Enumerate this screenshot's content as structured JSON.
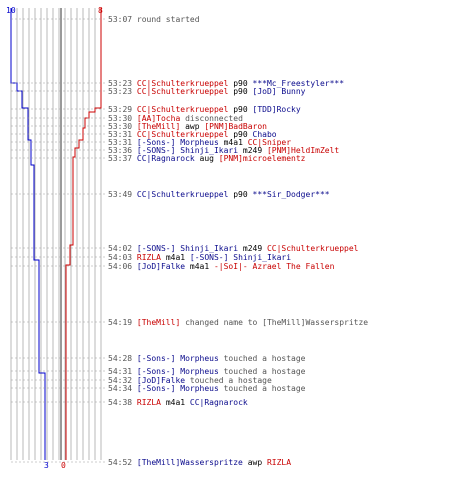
{
  "colors": {
    "blue_team": "#0000cc",
    "red_team": "#cc0000",
    "grid": "#b8b8b8",
    "center": "#333333",
    "time": "#555555"
  },
  "scores": {
    "top_left": "10",
    "top_right": "8",
    "bottom_left": "3",
    "bottom_right": "0"
  },
  "events": [
    {
      "time": "53:07",
      "parts": [
        {
          "text": "round started",
          "team": "msg"
        }
      ]
    },
    {
      "time": "53:23",
      "parts": [
        {
          "text": "CC|Schulterkrueppel",
          "team": "red"
        },
        {
          "text": " p90 ",
          "team": "plain"
        },
        {
          "text": "***Mc_Freestyler***",
          "team": "blue"
        }
      ]
    },
    {
      "time": "53:23",
      "parts": [
        {
          "text": "CC|Schulterkrueppel",
          "team": "red"
        },
        {
          "text": " p90 ",
          "team": "plain"
        },
        {
          "text": "[JoD] Bunny",
          "team": "blue"
        }
      ]
    },
    {
      "time": "53:29",
      "parts": [
        {
          "text": "CC|Schulterkrueppel",
          "team": "red"
        },
        {
          "text": " p90 ",
          "team": "plain"
        },
        {
          "text": "[TDD]Rocky",
          "team": "blue"
        }
      ]
    },
    {
      "time": "53:30",
      "parts": [
        {
          "text": "[AA]Tocha",
          "team": "red"
        },
        {
          "text": " disconnected",
          "team": "msg"
        }
      ]
    },
    {
      "time": "53:30",
      "parts": [
        {
          "text": "[TheMill]",
          "team": "red"
        },
        {
          "text": " awp ",
          "team": "plain"
        },
        {
          "text": "[PNM]BadBaron",
          "team": "red"
        }
      ]
    },
    {
      "time": "53:31",
      "parts": [
        {
          "text": "CC|Schulterkrueppel",
          "team": "red"
        },
        {
          "text": " p90 ",
          "team": "plain"
        },
        {
          "text": "Chabo",
          "team": "blue"
        }
      ]
    },
    {
      "time": "53:31",
      "parts": [
        {
          "text": "[-Sons-] Morpheus",
          "team": "blue"
        },
        {
          "text": " m4a1 ",
          "team": "plain"
        },
        {
          "text": "CC|Sniper",
          "team": "red"
        }
      ]
    },
    {
      "time": "53:36",
      "parts": [
        {
          "text": "[-SONS-] Shinji_Ikari",
          "team": "blue"
        },
        {
          "text": " m249 ",
          "team": "plain"
        },
        {
          "text": "[PNM]HeldImZelt",
          "team": "red"
        }
      ]
    },
    {
      "time": "53:37",
      "parts": [
        {
          "text": "CC|Ragnarock",
          "team": "blue"
        },
        {
          "text": " aug ",
          "team": "plain"
        },
        {
          "text": "[PNM]microelementz",
          "team": "red"
        }
      ]
    },
    {
      "time": "53:49",
      "parts": [
        {
          "text": "CC|Schulterkrueppel",
          "team": "blue"
        },
        {
          "text": " p90 ",
          "team": "plain"
        },
        {
          "text": "***Sir_Dodger***",
          "team": "blue"
        }
      ]
    },
    {
      "time": "54:02",
      "parts": [
        {
          "text": "[-SONS-] Shinji_Ikari",
          "team": "blue"
        },
        {
          "text": " m249 ",
          "team": "plain"
        },
        {
          "text": "CC|Schulterkrueppel",
          "team": "red"
        }
      ]
    },
    {
      "time": "54:03",
      "parts": [
        {
          "text": "RIZLA",
          "team": "red"
        },
        {
          "text": " m4a1 ",
          "team": "plain"
        },
        {
          "text": "[-SONS-] Shinji_Ikari",
          "team": "blue"
        }
      ]
    },
    {
      "time": "54:06",
      "parts": [
        {
          "text": "[JoD]Falke",
          "team": "blue"
        },
        {
          "text": " m4a1 ",
          "team": "plain"
        },
        {
          "text": "-|SoI|- Azrael The Fallen",
          "team": "red"
        }
      ]
    },
    {
      "time": "54:19",
      "parts": [
        {
          "text": "[TheMill]",
          "team": "red"
        },
        {
          "text": " changed name to [TheMill]Wasserspritze",
          "team": "msg"
        }
      ]
    },
    {
      "time": "54:28",
      "parts": [
        {
          "text": "[-Sons-] Morpheus",
          "team": "blue"
        },
        {
          "text": " touched a hostage",
          "team": "msg"
        }
      ]
    },
    {
      "time": "54:31",
      "parts": [
        {
          "text": "[-Sons-] Morpheus",
          "team": "blue"
        },
        {
          "text": " touched a hostage",
          "team": "msg"
        }
      ]
    },
    {
      "time": "54:32",
      "parts": [
        {
          "text": "[JoD]Falke",
          "team": "blue"
        },
        {
          "text": " touched a hostage",
          "team": "msg"
        }
      ]
    },
    {
      "time": "54:34",
      "parts": [
        {
          "text": "[-Sons-] Morpheus",
          "team": "blue"
        },
        {
          "text": " touched a hostage",
          "team": "msg"
        }
      ]
    },
    {
      "time": "54:38",
      "parts": [
        {
          "text": "RIZLA",
          "team": "red"
        },
        {
          "text": " m4a1 ",
          "team": "plain"
        },
        {
          "text": "CC|Ragnarock",
          "team": "blue"
        }
      ]
    },
    {
      "time": "54:52",
      "parts": [
        {
          "text": "[TheMill]Wasserspritze",
          "team": "blue"
        },
        {
          "text": " awp ",
          "team": "plain"
        },
        {
          "text": "RIZLA",
          "team": "red"
        }
      ]
    }
  ]
}
